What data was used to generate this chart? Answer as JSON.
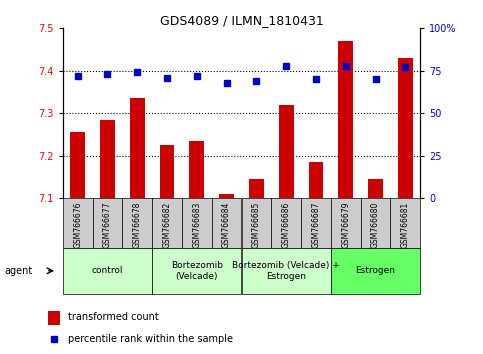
{
  "title": "GDS4089 / ILMN_1810431",
  "samples": [
    "GSM766676",
    "GSM766677",
    "GSM766678",
    "GSM766682",
    "GSM766683",
    "GSM766684",
    "GSM766685",
    "GSM766686",
    "GSM766687",
    "GSM766679",
    "GSM766680",
    "GSM766681"
  ],
  "transformed_count": [
    7.255,
    7.285,
    7.335,
    7.225,
    7.235,
    7.11,
    7.145,
    7.32,
    7.185,
    7.47,
    7.145,
    7.43
  ],
  "percentile_rank": [
    72,
    73,
    74,
    71,
    72,
    68,
    69,
    78,
    70,
    78,
    70,
    77
  ],
  "ylim_left": [
    7.1,
    7.5
  ],
  "ylim_right": [
    0,
    100
  ],
  "yticks_left": [
    7.1,
    7.2,
    7.3,
    7.4,
    7.5
  ],
  "yticks_right": [
    0,
    25,
    50,
    75,
    100
  ],
  "ytick_labels_right": [
    "0",
    "25",
    "50",
    "75",
    "100%"
  ],
  "bar_color": "#cc0000",
  "dot_color": "#0000cc",
  "groups": [
    {
      "label": "control",
      "start": 0,
      "end": 3,
      "color": "#ccffcc"
    },
    {
      "label": "Bortezomib\n(Velcade)",
      "start": 3,
      "end": 6,
      "color": "#ccffcc"
    },
    {
      "label": "Bortezomib (Velcade) +\nEstrogen",
      "start": 6,
      "end": 9,
      "color": "#ccffcc"
    },
    {
      "label": "Estrogen",
      "start": 9,
      "end": 12,
      "color": "#66ff66"
    }
  ],
  "legend_bar_label": "transformed count",
  "legend_dot_label": "percentile rank within the sample",
  "agent_label": "agent",
  "tick_area_color": "#cccccc"
}
